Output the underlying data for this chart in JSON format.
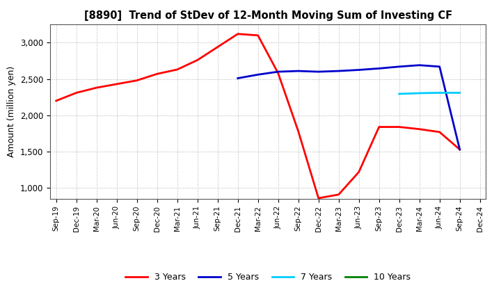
{
  "title": "[8890]  Trend of StDev of 12-Month Moving Sum of Investing CF",
  "ylabel": "Amount (million yen)",
  "background_color": "#ffffff",
  "grid_color": "#b0b0b0",
  "series": {
    "3years": {
      "label": "3 Years",
      "color": "#ff0000",
      "x": [
        "Sep-19",
        "Dec-19",
        "Mar-20",
        "Jun-20",
        "Sep-20",
        "Dec-20",
        "Mar-21",
        "Jun-21",
        "Sep-21",
        "Dec-21",
        "Mar-22",
        "Jun-22",
        "Sep-22",
        "Dec-22",
        "Mar-23",
        "Jun-23",
        "Sep-23",
        "Dec-23",
        "Mar-24",
        "Jun-24",
        "Sep-24"
      ],
      "y": [
        2200,
        2310,
        2380,
        2430,
        2480,
        2570,
        2630,
        2760,
        2940,
        3120,
        3100,
        2580,
        1780,
        860,
        910,
        1220,
        1840,
        1840,
        1810,
        1770,
        1530
      ]
    },
    "5years": {
      "label": "5 Years",
      "color": "#0000cc",
      "x": [
        "Dec-21",
        "Mar-22",
        "Jun-22",
        "Sep-22",
        "Dec-22",
        "Mar-23",
        "Jun-23",
        "Sep-23",
        "Dec-23",
        "Mar-24",
        "Jun-24",
        "Sep-24"
      ],
      "y": [
        2510,
        2560,
        2600,
        2610,
        2600,
        2610,
        2625,
        2645,
        2670,
        2690,
        2670,
        1530
      ]
    },
    "7years": {
      "label": "7 Years",
      "color": "#00ccff",
      "x": [
        "Dec-23",
        "Mar-24",
        "Jun-24",
        "Sep-24"
      ],
      "y": [
        2295,
        2305,
        2310,
        2310
      ]
    },
    "10years": {
      "label": "10 Years",
      "color": "#008000",
      "x": [],
      "y": []
    }
  },
  "xticks": [
    "Sep-19",
    "Dec-19",
    "Mar-20",
    "Jun-20",
    "Sep-20",
    "Dec-20",
    "Mar-21",
    "Jun-21",
    "Sep-21",
    "Dec-21",
    "Mar-22",
    "Jun-22",
    "Sep-22",
    "Dec-22",
    "Mar-23",
    "Jun-23",
    "Sep-23",
    "Dec-23",
    "Mar-24",
    "Jun-24",
    "Sep-24",
    "Dec-24"
  ],
  "ylim": [
    850,
    3250
  ],
  "yticks": [
    1000,
    1500,
    2000,
    2500,
    3000
  ]
}
